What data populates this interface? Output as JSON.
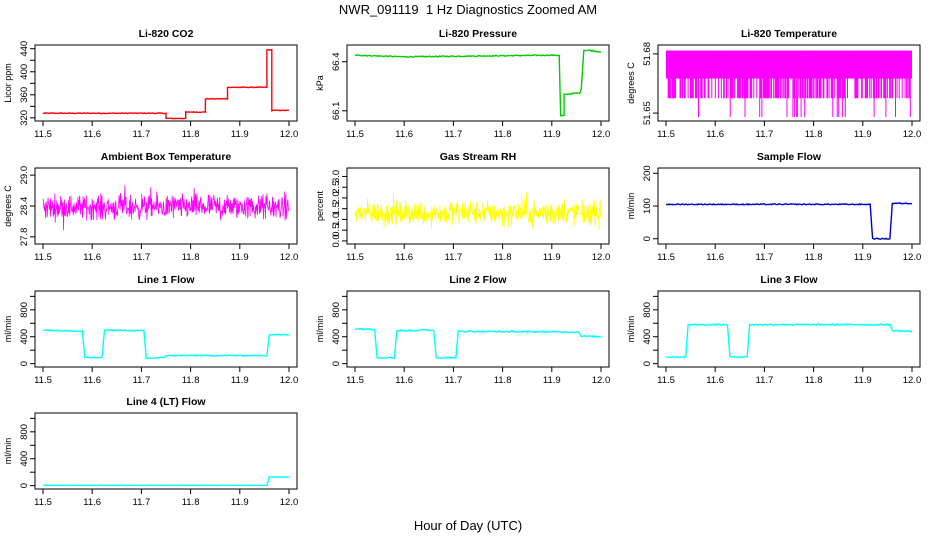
{
  "title": "NWR_091119  1 Hz Diagnostics Zoomed AM",
  "xlabel": "Hour of Day (UTC)",
  "chart_data": [
    {
      "type": "line",
      "title": "Li-820 CO2",
      "ylabel": "Licor ppm",
      "color": "#ff0000",
      "xlim": [
        11.5,
        12.0
      ],
      "ylim": [
        318,
        443
      ],
      "xticks": [
        "11.5",
        "11.6",
        "11.7",
        "11.8",
        "11.9",
        "12.0"
      ],
      "yticks": [
        "320",
        "340",
        "360",
        "380",
        "400",
        "420",
        "440"
      ],
      "yticks_shown": [
        "320",
        "360",
        "400",
        "440"
      ],
      "x": [
        11.5,
        11.75,
        11.75,
        11.79,
        11.79,
        11.83,
        11.83,
        11.875,
        11.875,
        11.955,
        11.955,
        11.965,
        11.965,
        12.0
      ],
      "y": [
        328,
        328,
        319,
        319,
        330,
        330,
        353,
        353,
        373,
        373,
        438,
        438,
        333,
        333
      ],
      "noise": 0.6
    },
    {
      "type": "line",
      "title": "Li-820 Pressure",
      "ylabel": "kPa",
      "color": "#00cc00",
      "xlim": [
        11.5,
        12.0
      ],
      "ylim": [
        66.05,
        66.49
      ],
      "yticks": [
        "66.1",
        "66.4"
      ],
      "x": [
        11.5,
        11.6,
        11.9,
        11.915,
        11.918,
        11.925,
        11.925,
        11.958,
        11.96,
        11.965,
        11.975,
        12.0
      ],
      "y": [
        66.44,
        66.43,
        66.44,
        66.44,
        66.07,
        66.07,
        66.2,
        66.21,
        66.24,
        66.47,
        66.47,
        66.46
      ],
      "noise": 0.003
    },
    {
      "type": "band",
      "title": "Li-820 Temperature",
      "ylabel": "degrees C",
      "color": "#ff00ff",
      "xlim": [
        11.5,
        12.0
      ],
      "ylim": [
        51.647,
        51.6835
      ],
      "yticks": [
        "51.65",
        "51.68"
      ],
      "levels": [
        51.6817,
        51.6675,
        51.6575
      ],
      "spike_low": 51.648
    },
    {
      "type": "noise",
      "title": "Ambient Box Temperature",
      "ylabel": "degrees C",
      "color": "#ff00ff",
      "xlim": [
        11.5,
        12.0
      ],
      "ylim": [
        27.7,
        29.1
      ],
      "yticks": [
        "27.8",
        "28.4",
        "29.0"
      ],
      "center": 28.38,
      "amplitude": 0.35
    },
    {
      "type": "noise",
      "title": "Gas Stream RH",
      "ylabel": "percent",
      "color": "#ffff00",
      "xlim": [
        11.5,
        12.0
      ],
      "ylim": [
        -0.05,
        3.3
      ],
      "yticks": [
        "0.0",
        "0.5",
        "1.0",
        "1.5",
        "2.0",
        "2.5",
        "3.0"
      ],
      "center": 1.3,
      "amplitude": 0.8
    },
    {
      "type": "line",
      "title": "Sample Flow",
      "ylabel": "ml/min",
      "color": "#0000cc",
      "xlim": [
        11.5,
        12.0
      ],
      "ylim": [
        -10,
        210
      ],
      "yticks": [
        "0",
        "100",
        "200"
      ],
      "x": [
        11.5,
        11.915,
        11.92,
        11.955,
        11.96,
        12.0
      ],
      "y": [
        105,
        105,
        0,
        0,
        108,
        108
      ],
      "noise": 1.5
    },
    {
      "type": "line",
      "title": "Line 1 Flow",
      "ylabel": "ml/min",
      "color": "#00ffff",
      "xlim": [
        11.5,
        12.0
      ],
      "ylim": [
        -20,
        1050
      ],
      "yticks": [
        "0",
        "200",
        "400",
        "600",
        "800",
        "1000"
      ],
      "yticks_shown": [
        "0",
        "400",
        "800"
      ],
      "x": [
        11.5,
        11.58,
        11.585,
        11.62,
        11.625,
        11.705,
        11.71,
        11.745,
        11.75,
        11.955,
        11.96,
        12.0
      ],
      "y": [
        500,
        480,
        90,
        90,
        500,
        490,
        80,
        90,
        120,
        120,
        430,
        430
      ],
      "noise": 8
    },
    {
      "type": "line",
      "title": "Line 2 Flow",
      "ylabel": "ml/min",
      "color": "#00ffff",
      "xlim": [
        11.5,
        12.0
      ],
      "ylim": [
        -20,
        1050
      ],
      "yticks": [
        "0",
        "200",
        "400",
        "600",
        "800",
        "1000"
      ],
      "yticks_shown": [
        "0",
        "400",
        "800"
      ],
      "x": [
        11.5,
        11.54,
        11.545,
        11.58,
        11.585,
        11.66,
        11.665,
        11.705,
        11.71,
        11.955,
        11.96,
        12.0
      ],
      "y": [
        520,
        510,
        90,
        90,
        490,
        500,
        90,
        90,
        480,
        470,
        410,
        400
      ],
      "noise": 10
    },
    {
      "type": "line",
      "title": "Line 3 Flow",
      "ylabel": "ml/min",
      "color": "#00ffff",
      "xlim": [
        11.5,
        12.0
      ],
      "ylim": [
        -20,
        1050
      ],
      "yticks": [
        "0",
        "200",
        "400",
        "600",
        "800",
        "1000"
      ],
      "yticks_shown": [
        "0",
        "400",
        "800"
      ],
      "x": [
        11.5,
        11.54,
        11.545,
        11.625,
        11.63,
        11.665,
        11.67,
        11.955,
        11.96,
        12.0
      ],
      "y": [
        100,
        100,
        580,
        580,
        100,
        100,
        580,
        580,
        490,
        480
      ],
      "noise": 10
    },
    {
      "type": "line",
      "title": "Line 4 (LT) Flow",
      "ylabel": "ml/min",
      "color": "#00ffff",
      "xlim": [
        11.5,
        12.0
      ],
      "ylim": [
        -20,
        1050
      ],
      "yticks": [
        "0",
        "200",
        "400",
        "600",
        "800",
        "1000"
      ],
      "yticks_shown": [
        "0",
        "400",
        "800"
      ],
      "x": [
        11.5,
        11.955,
        11.96,
        12.0
      ],
      "y": [
        5,
        5,
        130,
        130
      ],
      "noise": 2
    }
  ]
}
